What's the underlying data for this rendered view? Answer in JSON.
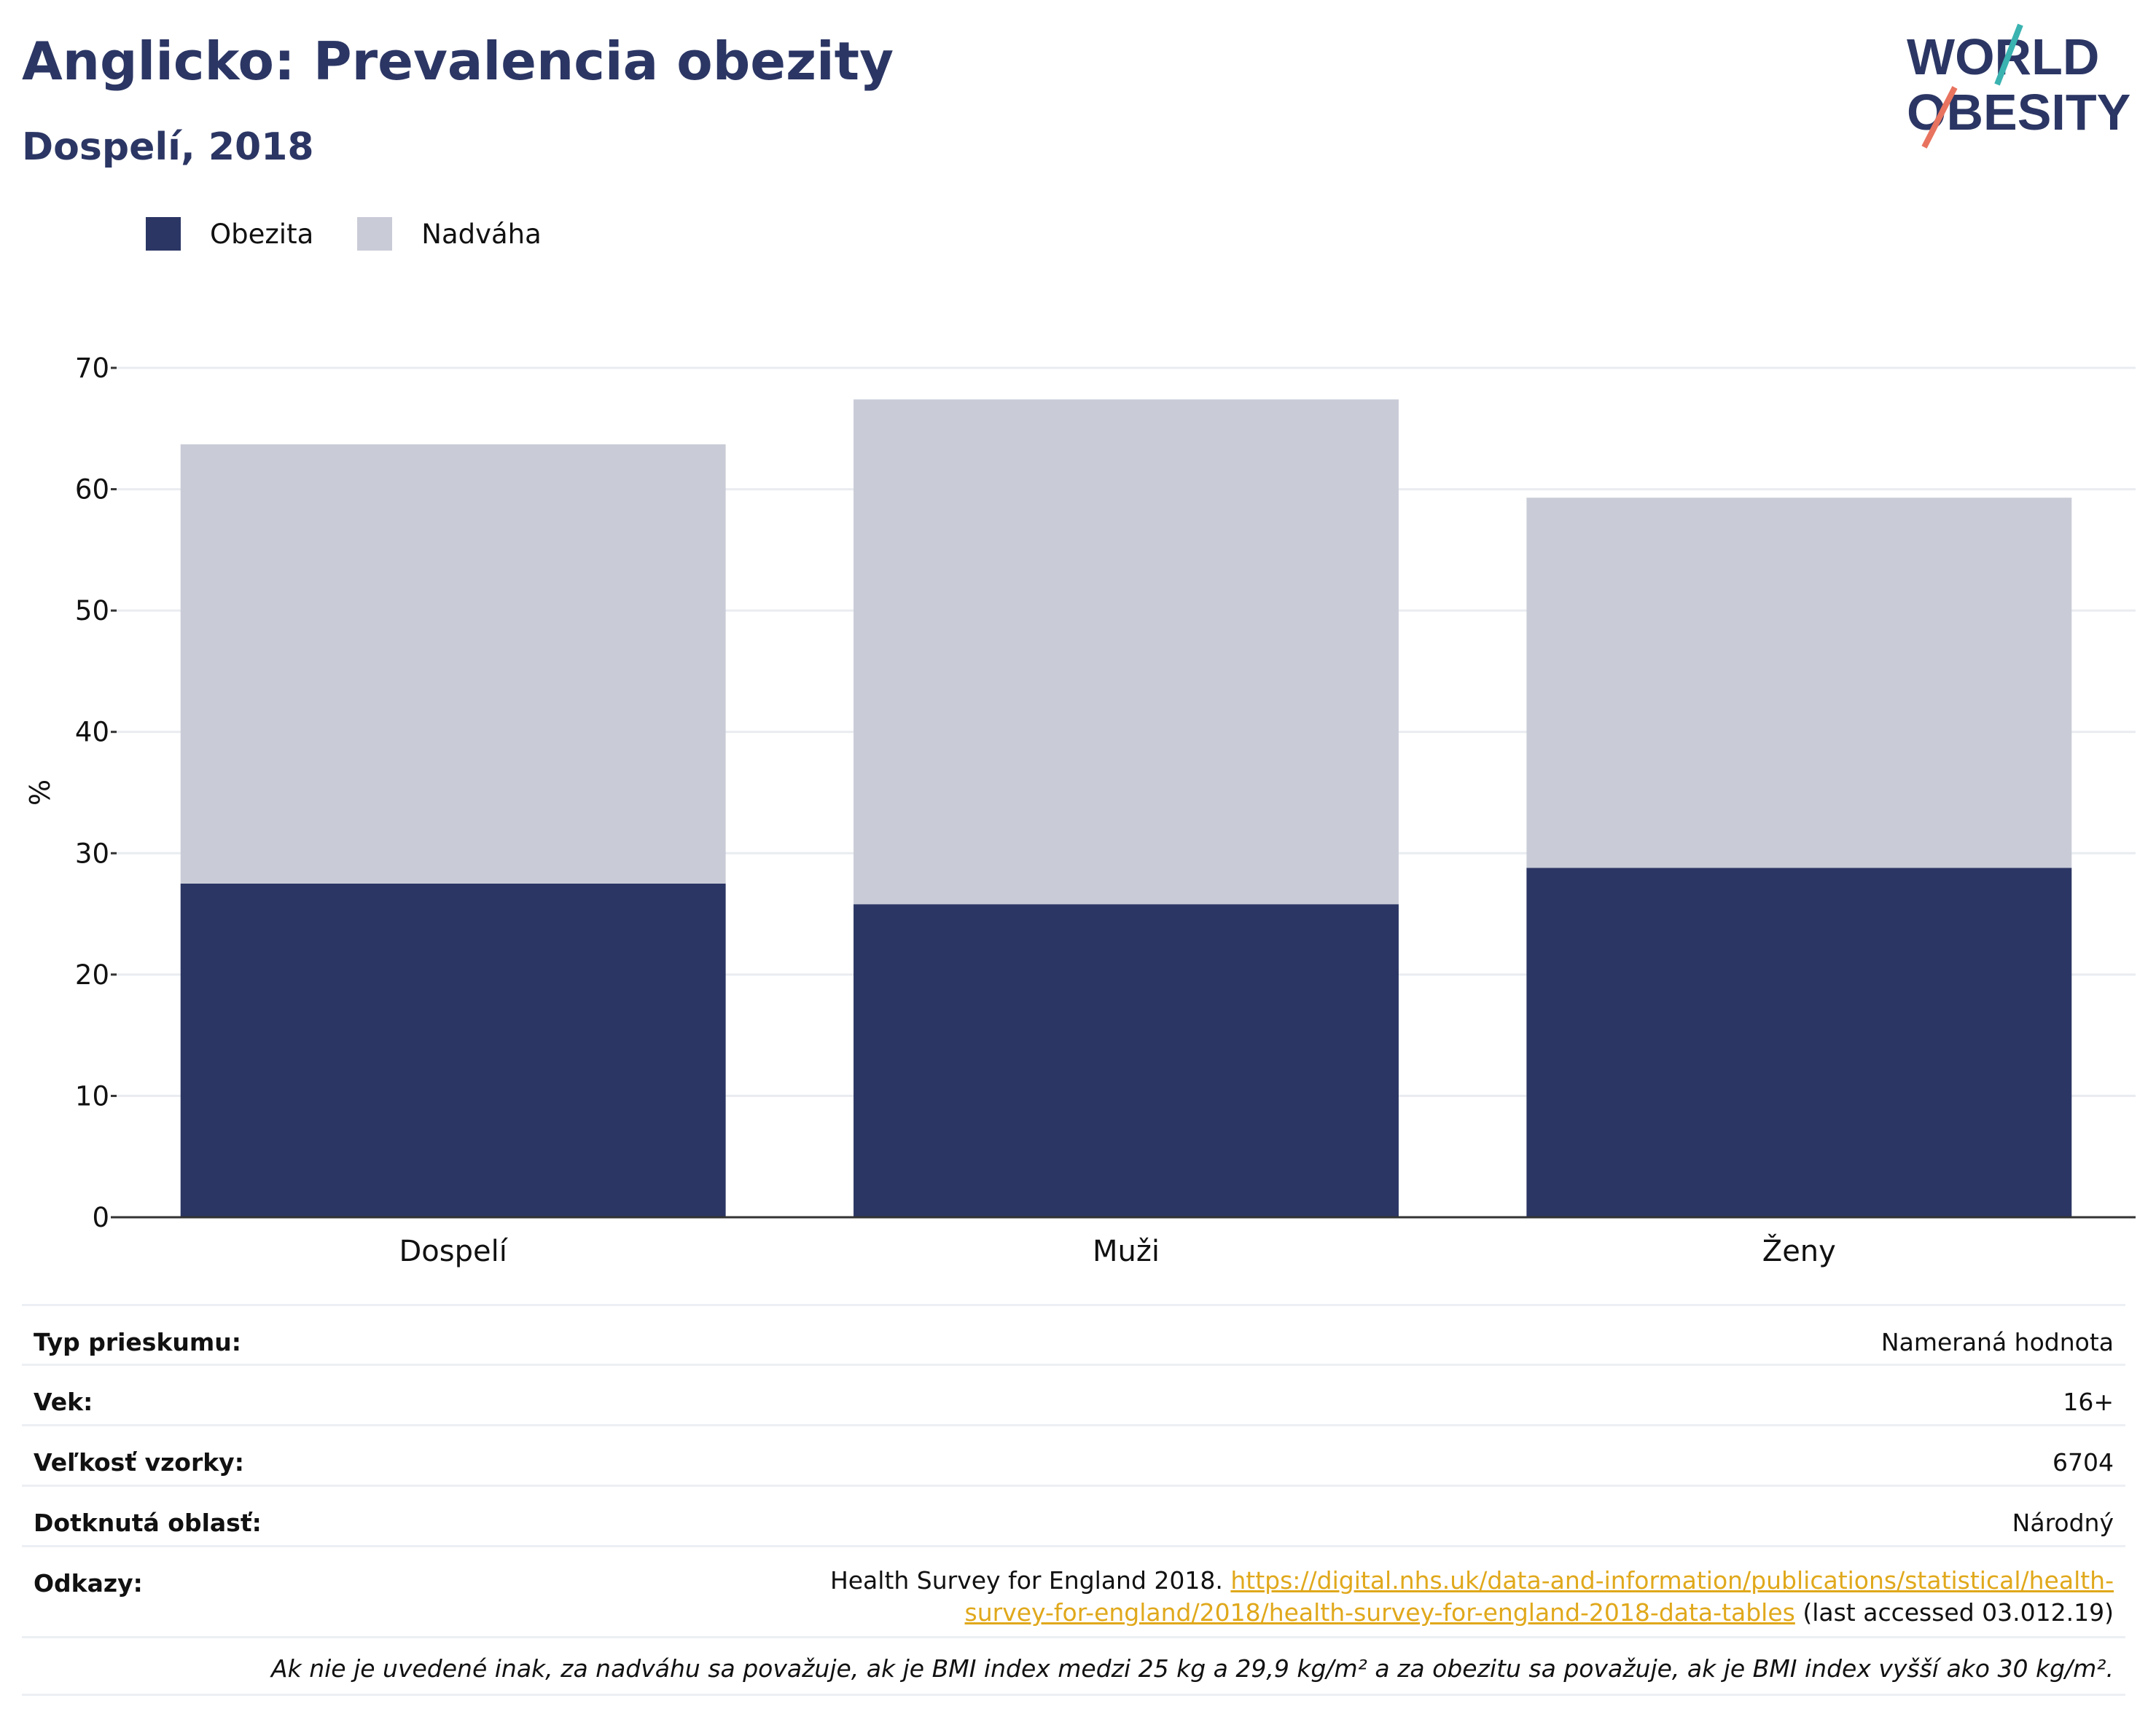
{
  "header": {
    "title": "Anglicko: Prevalencia obezity",
    "subtitle": "Dospelí, 2018"
  },
  "logo": {
    "line1": "WORLD",
    "line2": "OBESITY"
  },
  "colors": {
    "obesity": "#2b3664",
    "overweight": "#c9ccd7",
    "grid": "#e9ecf0",
    "axis": "#333333",
    "link": "#e0a81b"
  },
  "chart_data": {
    "type": "bar",
    "stacked": true,
    "categories": [
      "Dospelí",
      "Muži",
      "Ženy"
    ],
    "series": [
      {
        "name": "Obezita",
        "values": [
          27.5,
          25.8,
          28.8
        ],
        "color": "#2b3664"
      },
      {
        "name": "Nadváha",
        "values": [
          36.2,
          41.6,
          30.5
        ],
        "color": "#c9ccd7"
      }
    ],
    "ylabel": "%",
    "ylim": [
      0,
      70
    ],
    "yticks": [
      0,
      10,
      20,
      30,
      40,
      50,
      60,
      70
    ],
    "grid": true,
    "legend": "top-left"
  },
  "info": {
    "rows": [
      {
        "label": "Typ prieskumu:",
        "value": "Nameraná hodnota"
      },
      {
        "label": "Vek:",
        "value": "16+"
      },
      {
        "label": "Veľkosť vzorky:",
        "value": "6704"
      },
      {
        "label": "Dotknutá oblasť:",
        "value": "Národný"
      }
    ],
    "refs_label": "Odkazy:",
    "refs_text": "Health Survey for England 2018.",
    "refs_link": "https://digital.nhs.uk/data-and-information/publications/statistical/health-survey-for-england/2018/health-survey-for-england-2018-data-tables",
    "refs_suffix": "(last accessed 03.012.19)",
    "note": "Ak nie je uvedené inak, za nadváhu sa považuje, ak je BMI index medzi 25 kg a 29,9 kg/m² a za obezitu sa považuje, ak je BMI index vyšší ako 30 kg/m²."
  }
}
